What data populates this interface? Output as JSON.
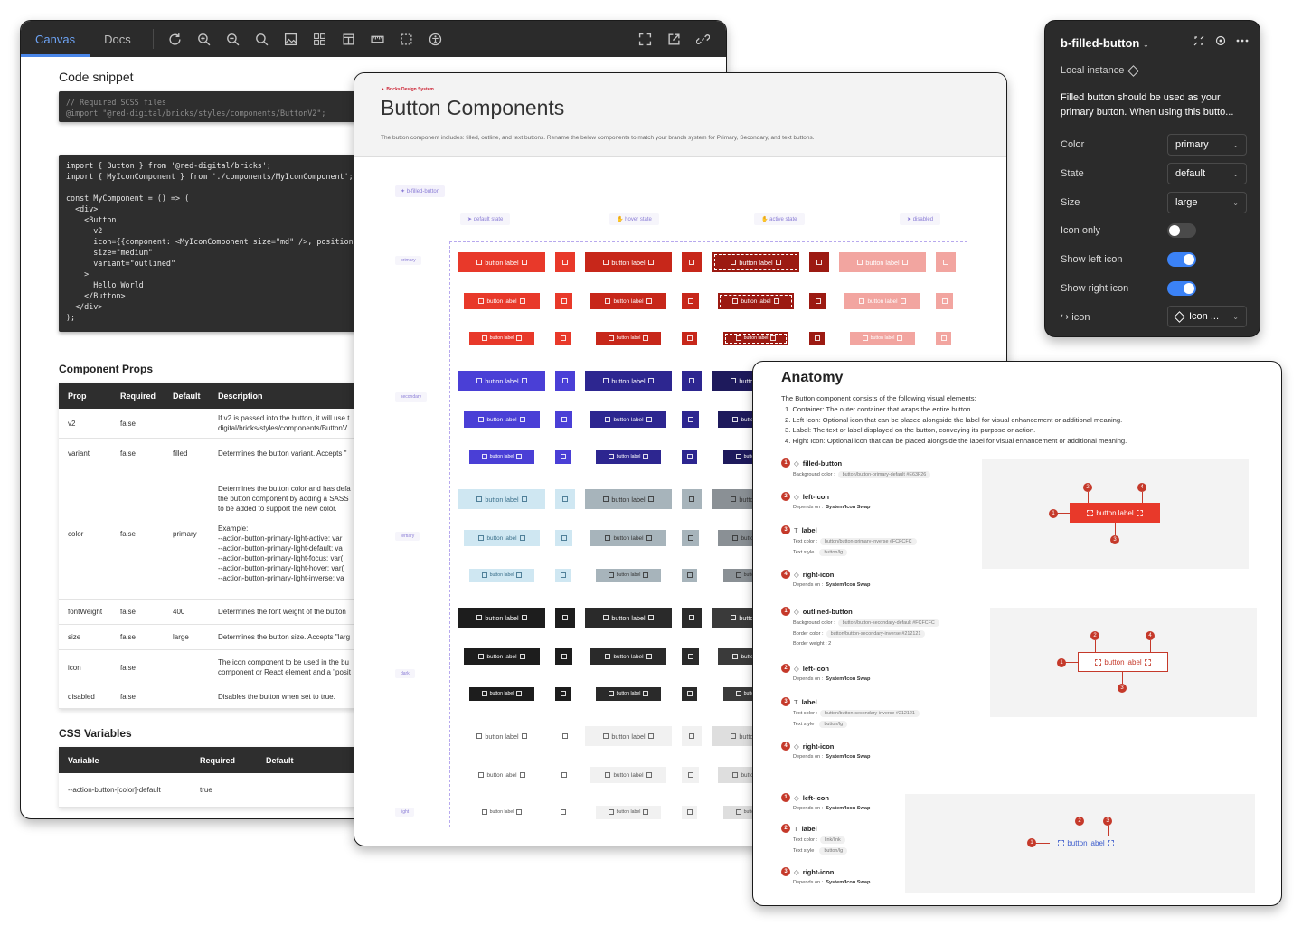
{
  "docs": {
    "tabs": [
      "Canvas",
      "Docs"
    ],
    "toolbar_icons": [
      "refresh-icon",
      "zoom-in-icon",
      "zoom-out-icon",
      "zoom-reset-icon",
      "image-icon",
      "grid-icon",
      "layers-icon",
      "ruler-icon",
      "frame-icon",
      "accessibility-icon"
    ],
    "toolbar_right_icons": [
      "fullscreen-icon",
      "open-new-icon",
      "link-icon"
    ],
    "code_snippet_title": "Code snippet",
    "code1": [
      "// Required SCSS files",
      "@import \"@red-digital/bricks/styles/components/ButtonV2\";"
    ],
    "code2": [
      "import { Button } from '@red-digital/bricks';",
      "import { MyIconComponent } from './components/MyIconComponent';",
      "",
      "const MyComponent = () => (",
      "  <div>",
      "    <Button",
      "      v2",
      "      icon={{component: <MyIconComponent size=\"md\" />, position",
      "      size=\"medium\"",
      "      variant=\"outlined\"",
      "    >",
      "      Hello World",
      "    </Button>",
      "  </div>",
      ");"
    ],
    "props_title": "Component Props",
    "props_headers": [
      "Prop",
      "Required",
      "Default",
      "Description"
    ],
    "props_rows": [
      {
        "prop": "v2",
        "req": "false",
        "def": "",
        "desc": [
          "If v2 is passed into the button, it will use t",
          "digital/bricks/styles/components/ButtonV"
        ]
      },
      {
        "prop": "variant",
        "req": "false",
        "def": "filled",
        "desc": [
          "Determines the button variant. Accepts \""
        ]
      },
      {
        "prop": "color",
        "req": "false",
        "def": "primary",
        "desc": [
          "Determines the button color and has defa",
          "the button component by adding a SASS",
          "to be added to support the new color.",
          "",
          "Example:",
          "--action-button-primary-light-active: var",
          "--action-button-primary-light-default: va",
          "--action-button-primary-light-focus: var(",
          "--action-button-primary-light-hover: var(",
          "--action-button-primary-light-inverse: va"
        ]
      },
      {
        "prop": "fontWeight",
        "req": "false",
        "def": "400",
        "desc": [
          "Determines the font weight of the button"
        ]
      },
      {
        "prop": "size",
        "req": "false",
        "def": "large",
        "desc": [
          "Determines the button size. Accepts \"larg"
        ]
      },
      {
        "prop": "icon",
        "req": "false",
        "def": "",
        "desc": [
          "The icon component to be used in the bu",
          "component or React element and a \"posit"
        ]
      },
      {
        "prop": "disabled",
        "req": "false",
        "def": "",
        "desc": [
          "Disables the button when set to true."
        ]
      }
    ],
    "css_title": "CSS Variables",
    "css_headers": [
      "Variable",
      "Required",
      "Default"
    ],
    "css_rows": [
      {
        "var": "--action-button-[color]-default",
        "req": "true",
        "def": ""
      }
    ]
  },
  "canvas": {
    "brand": "Bricks Design System",
    "title": "Button Components",
    "description": "The button component includes: filled, outline, and text buttons. Rename the below components to match your brands system for Primary, Secondary, and text buttons.",
    "component_tag": "b-filled-button",
    "states": [
      "default state",
      "hover state",
      "active state",
      "disabled"
    ],
    "row_labels": [
      "primary",
      "secondary",
      "tertiary",
      "dark",
      "light"
    ],
    "button_label": "button label",
    "colors": {
      "primary": [
        "#e8392a",
        "#c7271a",
        "#9c1a12",
        "#f2a5a0"
      ],
      "secondary": [
        "#4a3fd6",
        "#2d2690",
        "#1e1a5c",
        "#1e1a5c"
      ],
      "tertiary": [
        "#cfe7f2",
        "#a7b4bb",
        "#8a9095",
        "#8a9095"
      ],
      "dark": [
        "#1d1d1d",
        "#2a2a2a",
        "#3a3a3a",
        "#3a3a3a"
      ],
      "light": [
        "#ffffff",
        "#f1f1f1",
        "#dedede",
        "#dedede"
      ]
    }
  },
  "props": {
    "title": "b-filled-button",
    "local_instance": "Local instance",
    "description": "Filled button should be used as your primary button. When using this butto...",
    "rows": [
      {
        "label": "Color",
        "value": "primary"
      },
      {
        "label": "State",
        "value": "default"
      },
      {
        "label": "Size",
        "value": "large"
      }
    ],
    "toggles": [
      {
        "label": "Icon only",
        "on": false
      },
      {
        "label": "Show left icon",
        "on": true
      },
      {
        "label": "Show right icon",
        "on": true
      }
    ],
    "icon_label": "icon",
    "icon_value": "Icon ...",
    "toggle_on_color": "#3b82f6"
  },
  "anatomy": {
    "title": "Anatomy",
    "description": [
      "The Button component consists of the following visual elements:",
      "1. Container: The outer container that wraps the entire button.",
      "2. Left Icon: Optional icon that can be placed alongside the label for visual enhancement or additional meaning.",
      "3. Label: The text or label displayed on the button, conveying its purpose or action.",
      "4. Right Icon: Optional icon that can be placed alongside the label for visual enhancement or additional meaning."
    ],
    "groups": [
      {
        "items": [
          {
            "n": "1",
            "name": "filled-button",
            "specs": [
              [
                "Background color :",
                "button/button-primary-default #E63F26"
              ]
            ]
          },
          {
            "n": "2",
            "name": "left-icon",
            "specs": [
              [
                "Depends on :",
                "System/Icon Swap"
              ]
            ]
          },
          {
            "n": "3",
            "name": "label",
            "specs": [
              [
                "Text color :",
                "button/button-primary-inverse #FCFCFC"
              ],
              [
                "Text style :",
                "button/lg"
              ]
            ]
          },
          {
            "n": "4",
            "name": "right-icon",
            "specs": [
              [
                "Depends on :",
                "System/Icon Swap"
              ]
            ]
          }
        ]
      },
      {
        "items": [
          {
            "n": "1",
            "name": "outlined-button",
            "specs": [
              [
                "Background color :",
                "button/button-secondary-default #FCFCFC"
              ],
              [
                "Border color :",
                "button/button-secondary-inverse #212121"
              ],
              [
                "Border weight : 2",
                ""
              ]
            ]
          },
          {
            "n": "2",
            "name": "left-icon",
            "specs": [
              [
                "Depends on :",
                "System/Icon Swap"
              ]
            ]
          },
          {
            "n": "3",
            "name": "label",
            "specs": [
              [
                "Text color :",
                "button/button-secondary-inverse #212121"
              ],
              [
                "Text style :",
                "button/lg"
              ]
            ]
          },
          {
            "n": "4",
            "name": "right-icon",
            "specs": [
              [
                "Depends on :",
                "System/Icon Swap"
              ]
            ]
          }
        ]
      },
      {
        "items": [
          {
            "n": "1",
            "name": "left-icon",
            "specs": [
              [
                "Depends on :",
                "System/Icon Swap"
              ]
            ]
          },
          {
            "n": "2",
            "name": "label",
            "specs": [
              [
                "Text color :",
                "link/link"
              ],
              [
                "Text style :",
                "button/lg"
              ]
            ]
          },
          {
            "n": "3",
            "name": "right-icon",
            "specs": [
              [
                "Depends on :",
                "System/Icon Swap"
              ]
            ]
          }
        ]
      }
    ],
    "diagram_label": "button label",
    "accent": "#c5392a",
    "primary_btn": "#e8392a",
    "link_color": "#3b5bcc"
  }
}
